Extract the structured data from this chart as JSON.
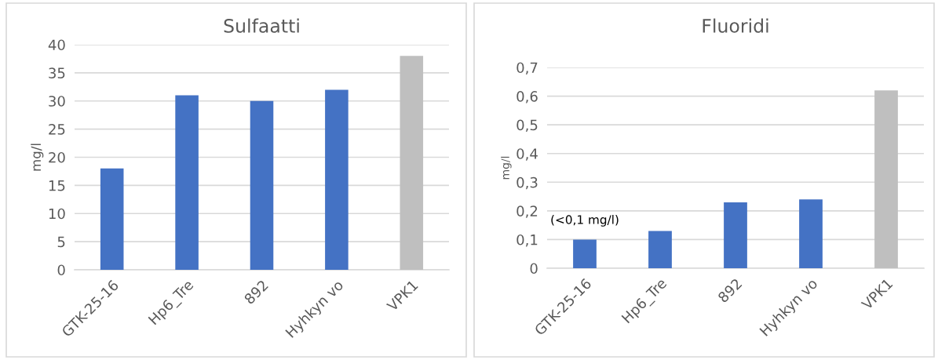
{
  "chart_data": [
    {
      "type": "bar",
      "title": "Sulfaatti",
      "ylabel": "mg/l",
      "categories": [
        "GTK-25-16",
        "Hp6_Tre",
        "892",
        "Hyhkyn vo",
        "VPK1"
      ],
      "values": [
        18,
        31,
        30,
        32,
        38
      ],
      "colors": [
        "#4472c4",
        "#4472c4",
        "#4472c4",
        "#4472c4",
        "#bfbfbf"
      ],
      "ylim": [
        0,
        40
      ],
      "yticks": [
        0,
        5,
        10,
        15,
        20,
        25,
        30,
        35,
        40
      ],
      "grid": "y"
    },
    {
      "type": "bar",
      "title": "Fluoridi",
      "ylabel": "mg/l",
      "categories": [
        "GTK-25-16",
        "Hp6_Tre",
        "892",
        "Hyhkyn vo",
        "VPK1"
      ],
      "values": [
        0.1,
        0.13,
        0.23,
        0.24,
        0.62
      ],
      "colors": [
        "#4472c4",
        "#4472c4",
        "#4472c4",
        "#4472c4",
        "#bfbfbf"
      ],
      "ylim": [
        0,
        0.7
      ],
      "yticks": [
        0,
        {
          "value": 0.1,
          "label": "0,1"
        },
        {
          "value": 0.2,
          "label": "0,2"
        },
        {
          "value": 0.3,
          "label": "0,3"
        },
        {
          "value": 0.4,
          "label": "0,4"
        },
        {
          "value": 0.5,
          "label": "0,5"
        },
        {
          "value": 0.6,
          "label": "0,6"
        },
        {
          "value": 0.7,
          "label": "0,7"
        }
      ],
      "grid": "y",
      "annotations": [
        {
          "text": "(<0,1 mg/l)",
          "x": "GTK-25-16",
          "y": 0.1
        }
      ]
    }
  ]
}
